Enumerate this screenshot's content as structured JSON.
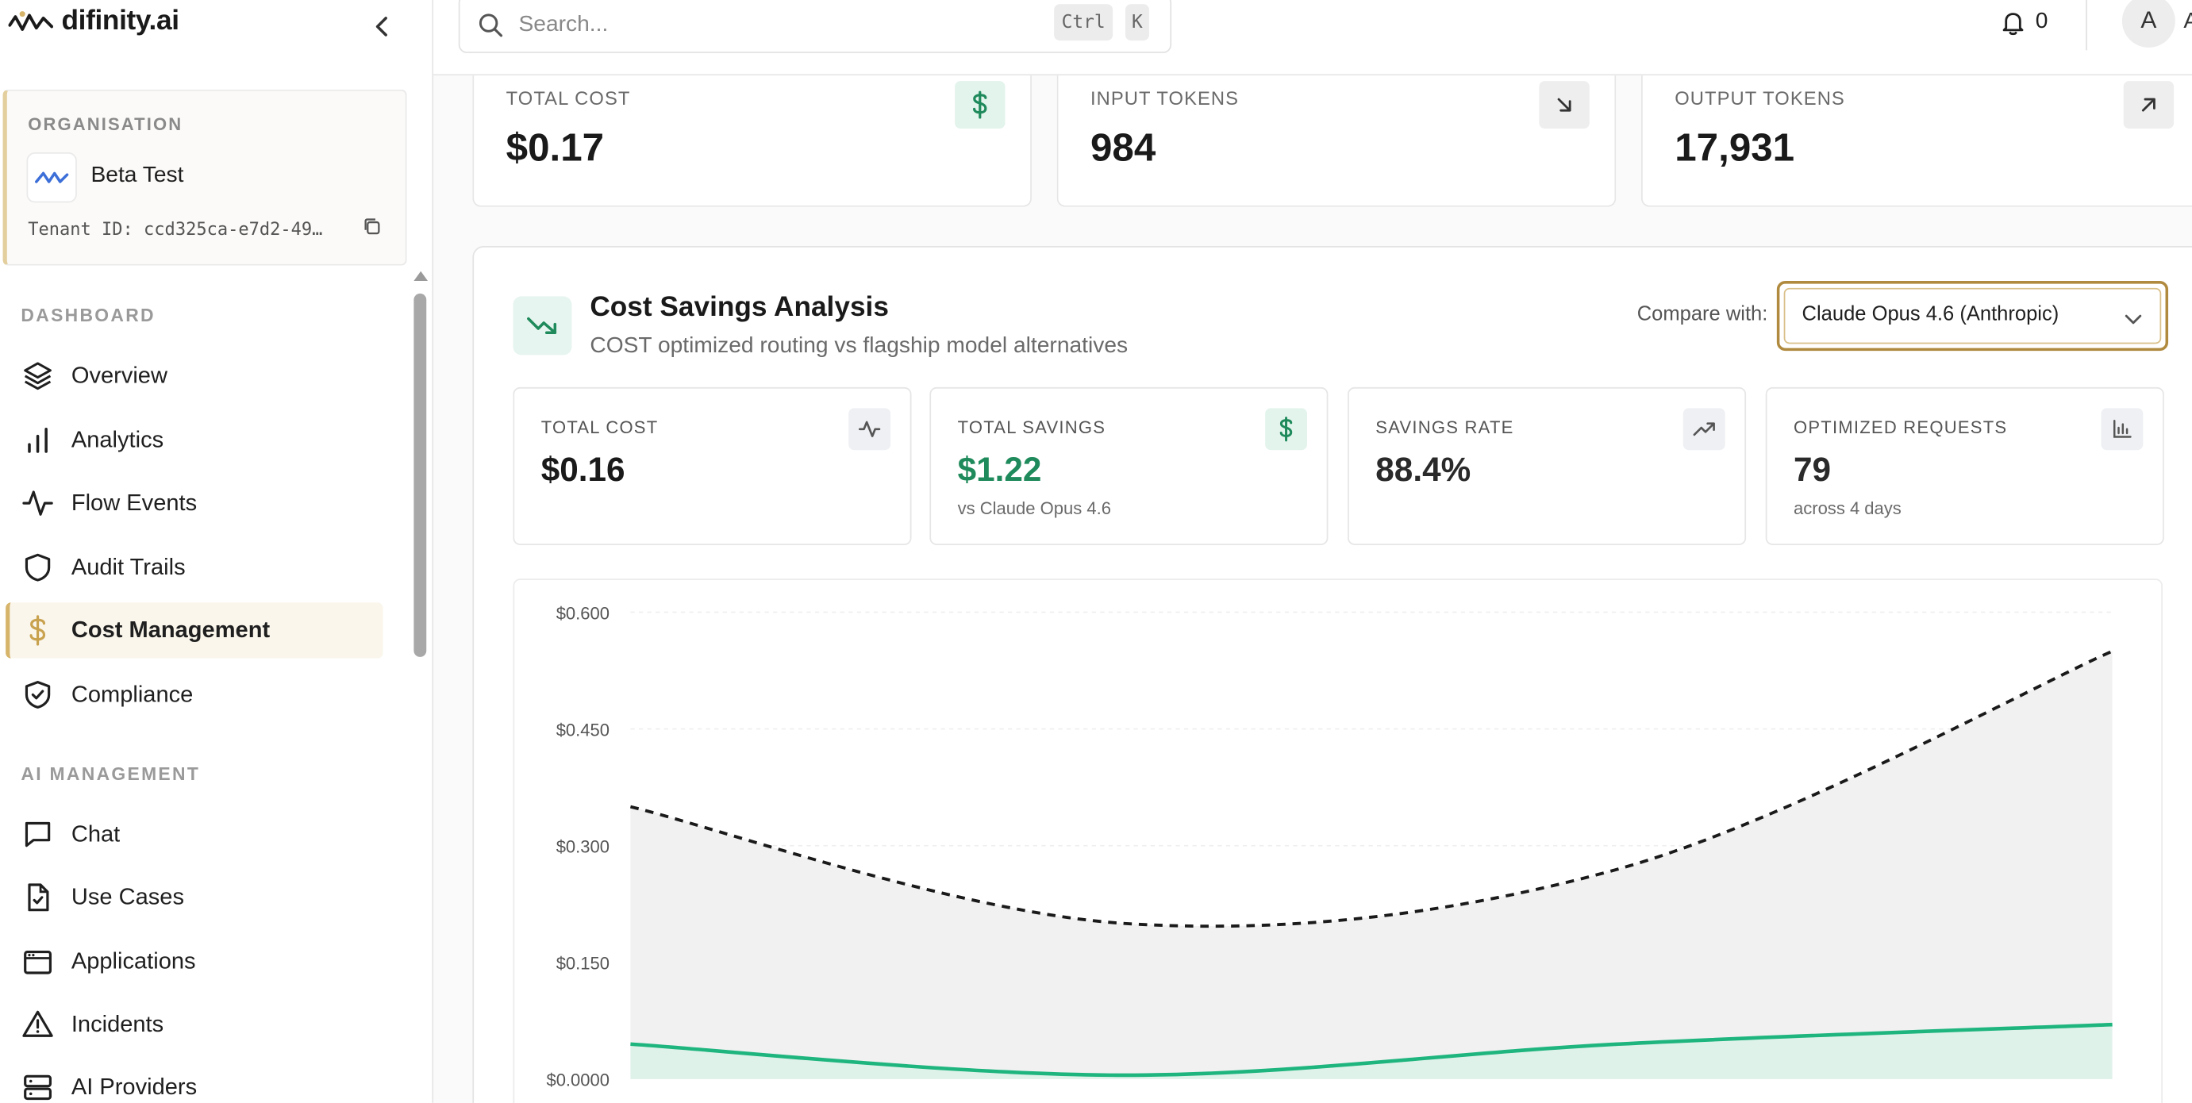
{
  "brand": {
    "name": "difinity.ai",
    "logo_icon": "wave-logo-icon"
  },
  "organisation": {
    "label": "ORGANISATION",
    "name": "Beta Test",
    "tenant_text": "Tenant ID: ccd325ca-e7d2-49…"
  },
  "sidebar": {
    "dashboard_label": "DASHBOARD",
    "dashboard_items": [
      {
        "label": "Overview",
        "icon": "layers-icon"
      },
      {
        "label": "Analytics",
        "icon": "bar-chart-icon"
      },
      {
        "label": "Flow Events",
        "icon": "activity-icon"
      },
      {
        "label": "Audit Trails",
        "icon": "shield-icon"
      },
      {
        "label": "Cost Management",
        "icon": "dollar-icon",
        "active": true
      },
      {
        "label": "Compliance",
        "icon": "shield-check-icon"
      }
    ],
    "ai_label": "AI MANAGEMENT",
    "ai_items": [
      {
        "label": "Chat",
        "icon": "message-square-icon"
      },
      {
        "label": "Use Cases",
        "icon": "file-check-icon"
      },
      {
        "label": "Applications",
        "icon": "app-window-icon"
      },
      {
        "label": "Incidents",
        "icon": "alert-triangle-icon"
      },
      {
        "label": "AI Providers",
        "icon": "server-icon"
      }
    ]
  },
  "header": {
    "search_placeholder": "Search...",
    "kbd_ctrl": "Ctrl",
    "kbd_k": "K",
    "notification_count": "0",
    "avatar_initial": "A",
    "avatar_trail": "A"
  },
  "kpis": [
    {
      "label": "TOTAL COST",
      "value": "$0.17",
      "icon": "dollar-icon"
    },
    {
      "label": "INPUT TOKENS",
      "value": "984",
      "icon": "arrow-down-right-icon"
    },
    {
      "label": "OUTPUT TOKENS",
      "value": "17,931",
      "icon": "arrow-up-right-icon"
    }
  ],
  "analysis": {
    "title": "Cost Savings Analysis",
    "subtitle": "COST optimized routing vs flagship model alternatives",
    "compare_label": "Compare with:",
    "compare_value": "Claude Opus 4.6 (Anthropic)",
    "stats": [
      {
        "label": "TOTAL COST",
        "value": "$0.16",
        "sub": "",
        "icon": "activity-icon"
      },
      {
        "label": "TOTAL SAVINGS",
        "value": "$1.22",
        "sub": "vs Claude Opus 4.6",
        "icon": "dollar-icon"
      },
      {
        "label": "SAVINGS RATE",
        "value": "88.4%",
        "sub": "",
        "icon": "trending-up-icon"
      },
      {
        "label": "OPTIMIZED REQUESTS",
        "value": "79",
        "sub": "across 4 days",
        "icon": "bar-chart-icon"
      }
    ]
  },
  "colors": {
    "accent_gold": "#d6b46a",
    "green": "#1fb57f",
    "green_text": "#1f8a5b",
    "dashed_line": "#1a1a1a"
  },
  "chart_data": {
    "type": "area",
    "ylim": [
      0,
      0.6
    ],
    "yticks": [
      "$0.600",
      "$0.450",
      "$0.300",
      "$0.150",
      "$0.0000"
    ],
    "ytick_values": [
      0.6,
      0.45,
      0.3,
      0.15,
      0
    ],
    "grid": true,
    "series": [
      {
        "style": "dashed",
        "color": "#1a1a1a",
        "fill": "#f1f1f1",
        "values": [
          0.35,
          0.2,
          0.27,
          0.55
        ]
      },
      {
        "style": "solid",
        "color": "#1fb57f",
        "fill": "#dff2ea",
        "values": [
          0.045,
          0.005,
          0.045,
          0.07
        ]
      }
    ]
  }
}
